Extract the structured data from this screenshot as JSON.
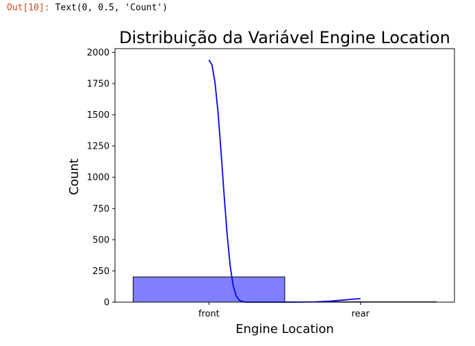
{
  "cell_output": {
    "prompt": "Out[10]:",
    "text": "Text(0, 0.5, 'Count')"
  },
  "chart_data": {
    "type": "bar",
    "title": "Distribuição da Variável Engine Location",
    "xlabel": "Engine Location",
    "ylabel": "Count",
    "categories": [
      "front",
      "rear"
    ],
    "values": [
      202,
      3
    ],
    "ylim": [
      0,
      2030
    ],
    "yticks": [
      0,
      250,
      500,
      750,
      1000,
      1250,
      1500,
      1750,
      2000
    ],
    "ytick_labels": [
      "0",
      "250",
      "500",
      "750",
      "1000",
      "1250",
      "1500",
      "1750",
      "2000"
    ],
    "bar_color": "#8080ff",
    "bar_edge_color": "#000000",
    "kde_color": "#0000ff",
    "kde_curve": {
      "x": [
        0.0,
        0.02,
        0.04,
        0.06,
        0.08,
        0.1,
        0.12,
        0.14,
        0.16,
        0.18,
        0.2,
        0.22,
        0.24,
        0.26,
        0.28,
        0.3,
        0.35,
        0.4,
        0.5,
        0.6,
        0.7,
        0.8,
        0.9,
        0.95,
        1.0
      ],
      "y": [
        1940,
        1900,
        1760,
        1520,
        1200,
        860,
        540,
        290,
        130,
        50,
        16,
        4,
        1,
        0,
        0,
        0,
        0,
        0,
        0,
        0.3,
        2,
        8,
        18,
        24,
        28
      ]
    },
    "grid": false
  }
}
